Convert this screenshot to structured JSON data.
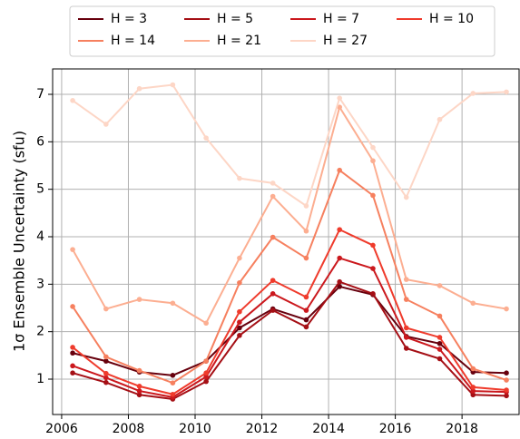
{
  "chart_data": {
    "type": "line",
    "y_label": "1σ Ensemble Uncertainty (sfu)",
    "x": [
      2006.33,
      2007.33,
      2008.33,
      2009.33,
      2010.33,
      2011.33,
      2012.33,
      2013.33,
      2014.33,
      2015.33,
      2016.33,
      2017.33,
      2018.33,
      2019.33
    ],
    "series": [
      {
        "name": "H = 3",
        "color": "#67000d",
        "values": [
          1.55,
          1.38,
          1.15,
          1.08,
          1.38,
          2.08,
          2.48,
          2.25,
          2.95,
          2.78,
          1.9,
          1.75,
          1.15,
          1.13
        ]
      },
      {
        "name": "H = 5",
        "color": "#a50f15",
        "values": [
          1.13,
          0.93,
          0.67,
          0.58,
          0.95,
          1.92,
          2.45,
          2.1,
          3.05,
          2.8,
          1.65,
          1.43,
          0.67,
          0.65
        ]
      },
      {
        "name": "H = 7",
        "color": "#cb181d",
        "values": [
          1.28,
          1.03,
          0.75,
          0.62,
          1.05,
          2.2,
          2.8,
          2.45,
          3.55,
          3.33,
          1.88,
          1.63,
          0.75,
          0.73
        ]
      },
      {
        "name": "H = 10",
        "color": "#ef3b2c",
        "values": [
          1.67,
          1.12,
          0.85,
          0.68,
          1.13,
          2.42,
          3.08,
          2.73,
          4.15,
          3.82,
          2.08,
          1.88,
          0.83,
          0.77
        ]
      },
      {
        "name": "H = 14",
        "color": "#f6805f",
        "values": [
          2.53,
          1.47,
          1.18,
          0.92,
          1.38,
          3.03,
          3.99,
          3.55,
          5.4,
          4.87,
          2.68,
          2.33,
          1.22,
          0.98
        ]
      },
      {
        "name": "H = 21",
        "color": "#fcae91",
        "values": [
          3.73,
          2.48,
          2.68,
          2.6,
          2.18,
          3.55,
          4.85,
          4.12,
          6.73,
          5.6,
          3.1,
          2.97,
          2.6,
          2.48
        ]
      },
      {
        "name": "H = 27",
        "color": "#fdd6c6",
        "values": [
          6.87,
          6.37,
          7.12,
          7.2,
          6.08,
          5.23,
          5.13,
          4.65,
          6.92,
          5.88,
          4.83,
          6.47,
          7.02,
          7.05
        ]
      }
    ],
    "xlim": [
      2005.73,
      2019.71
    ],
    "xticks": [
      2006,
      2008,
      2010,
      2012,
      2014,
      2016,
      2018
    ],
    "ylim": [
      0.255,
      7.535
    ],
    "yticks": [
      1,
      2,
      3,
      4,
      5,
      6,
      7
    ],
    "grid": true,
    "legend": "top"
  }
}
